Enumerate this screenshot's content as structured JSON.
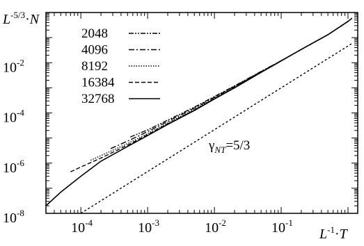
{
  "chart_data": {
    "type": "line",
    "xlabel": {
      "base": "L",
      "exp": "-1",
      "op": "·",
      "var": "T"
    },
    "ylabel": {
      "base": "L",
      "exp": "-5/3",
      "op": "·",
      "var": "N"
    },
    "xscale": "log",
    "yscale": "log",
    "xlim": [
      3e-05,
      1.4
    ],
    "ylim": [
      1e-08,
      1
    ],
    "xticks": [
      {
        "value": 0.0001,
        "base": "10",
        "exp": "-4"
      },
      {
        "value": 0.001,
        "base": "10",
        "exp": "-3"
      },
      {
        "value": 0.01,
        "base": "10",
        "exp": "-2"
      },
      {
        "value": 0.1,
        "base": "10",
        "exp": "-1"
      }
    ],
    "yticks": [
      {
        "value": 1e-08,
        "base": "10",
        "exp": "-8"
      },
      {
        "value": 1e-06,
        "base": "10",
        "exp": "-6"
      },
      {
        "value": 0.0001,
        "base": "10",
        "exp": "-4"
      },
      {
        "value": 0.01,
        "base": "10",
        "exp": "-2"
      }
    ],
    "grid": false,
    "legend_position": "top-left",
    "series": [
      {
        "name": "2048",
        "style": "dash-dot-dot",
        "x": [
          0.00055,
          0.001,
          0.002,
          0.005,
          0.01,
          0.02,
          0.05,
          0.1,
          0.2,
          0.5,
          1.0
        ],
        "y": [
          1.1e-05,
          2.1e-05,
          5.2e-05,
          0.00017,
          0.00045,
          0.0012,
          0.0045,
          0.012,
          0.034,
          0.13,
          0.45
        ]
      },
      {
        "name": "4096",
        "style": "dash-dot",
        "x": [
          0.00028,
          0.0005,
          0.001,
          0.002,
          0.005,
          0.01,
          0.02,
          0.05,
          0.1,
          0.2,
          0.5,
          1.0
        ],
        "y": [
          3.8e-06,
          7.5e-06,
          1.8e-05,
          4.6e-05,
          0.000155,
          0.00042,
          0.00115,
          0.0044,
          0.012,
          0.034,
          0.13,
          0.44
        ]
      },
      {
        "name": "8192",
        "style": "dotted",
        "x": [
          0.00014,
          0.0002,
          0.0005,
          0.001,
          0.002,
          0.005,
          0.01,
          0.02,
          0.05,
          0.1,
          0.2,
          0.5,
          1.0
        ],
        "y": [
          1.3e-06,
          2e-06,
          6e-06,
          1.5e-05,
          4e-05,
          0.00014,
          0.00039,
          0.0011,
          0.0043,
          0.012,
          0.034,
          0.13,
          0.44
        ]
      },
      {
        "name": "16384",
        "style": "dashed",
        "x": [
          7e-05,
          0.0001,
          0.0002,
          0.0005,
          0.001,
          0.002,
          0.005,
          0.01,
          0.02,
          0.05,
          0.1,
          0.2,
          0.5,
          1.0
        ],
        "y": [
          4.5e-07,
          7e-07,
          1.6e-06,
          5.2e-06,
          1.35e-05,
          3.7e-05,
          0.00013,
          0.00037,
          0.00105,
          0.0042,
          0.012,
          0.034,
          0.13,
          0.44
        ]
      },
      {
        "name": "32768",
        "style": "solid",
        "x": [
          3e-05,
          5e-05,
          0.0001,
          0.0002,
          0.0005,
          0.001,
          0.002,
          0.005,
          0.01,
          0.02,
          0.05,
          0.1,
          0.2,
          0.5,
          1.0,
          1.15
        ],
        "y": [
          2e-08,
          7e-08,
          3e-07,
          1.2e-06,
          4.6e-06,
          1.25e-05,
          3.5e-05,
          0.000125,
          0.00036,
          0.001,
          0.0041,
          0.0118,
          0.034,
          0.13,
          0.44,
          0.6
        ]
      },
      {
        "name": "",
        "style": "short-dash",
        "x": [
          0.0001,
          1.2
        ],
        "y": [
          1e-08,
          0.063
        ]
      }
    ],
    "annotation": {
      "base": "γ",
      "sub": "NT",
      "text": "=5/3"
    }
  }
}
